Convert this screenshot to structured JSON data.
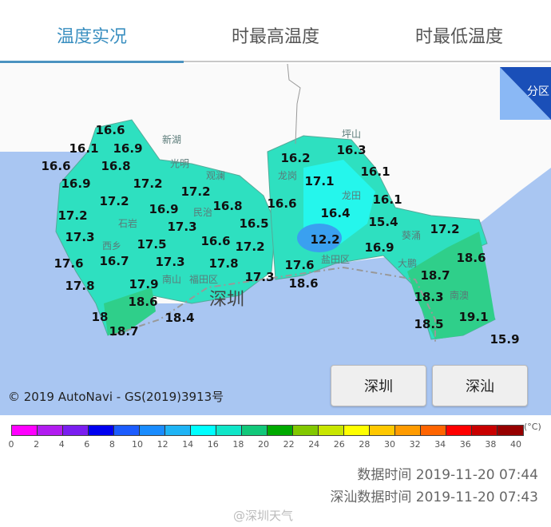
{
  "tabs": [
    {
      "label": "温度实况",
      "active": true
    },
    {
      "label": "时最高温度"
    },
    {
      "label": "时最低温度"
    }
  ],
  "map": {
    "corner_button": "分区",
    "city_label": "深圳",
    "copyright": "© 2019 AutoNavi - GS(2019)3913号",
    "buttons": [
      "深圳",
      "深汕"
    ],
    "temperatures": [
      "16.6",
      "16.1",
      "16.9",
      "16.6",
      "16.8",
      "16.9",
      "17.2",
      "17.2",
      "17.2",
      "17.2",
      "16.9",
      "16.8",
      "17.3",
      "16.5",
      "17.3",
      "17.5",
      "16.6",
      "17.2",
      "16.7",
      "17.3",
      "17.8",
      "17.3",
      "17.6",
      "17.8",
      "17.9",
      "18.6",
      "18",
      "18.7",
      "18.4",
      "16.2",
      "16.3",
      "17.1",
      "16.1",
      "16.6",
      "16.1",
      "16.4",
      "15.4",
      "12.2",
      "16.9",
      "17.2",
      "17.6",
      "18.6",
      "18.6",
      "18.7",
      "18.3",
      "18.5",
      "19.1",
      "15.9"
    ],
    "districts": [
      "新湖",
      "光明",
      "石岩",
      "西乡",
      "南山",
      "福田区",
      "观澜",
      "民治",
      "龙岗",
      "坪山",
      "龙田",
      "盐田区",
      "葵涌",
      "大鹏",
      "南澳"
    ],
    "colors": {
      "sea": "#a9c6f2",
      "land_cool": "#2ee0c0",
      "land_cold": "#22ffff",
      "land_warm": "#2fcf8a",
      "cold_spot": "#3aa0f0"
    }
  },
  "legend": {
    "unit": "(°C)",
    "ticks": [
      "0",
      "2",
      "4",
      "6",
      "8",
      "10",
      "12",
      "14",
      "16",
      "18",
      "20",
      "22",
      "24",
      "26",
      "28",
      "30",
      "32",
      "34",
      "36",
      "38",
      "40"
    ],
    "colors": [
      "#ff00ff",
      "#b21cf0",
      "#7a1ef0",
      "#0000f0",
      "#1c5cff",
      "#1a8cff",
      "#1fb4f5",
      "#00ffff",
      "#10e6c8",
      "#12c87a",
      "#00aa00",
      "#82c800",
      "#c8e600",
      "#ffff00",
      "#ffc800",
      "#ff9b00",
      "#ff6400",
      "#ff0000",
      "#c80000",
      "#960000"
    ]
  },
  "footer": {
    "data_time": "数据时间 2019-11-20 07:44",
    "shanwei_time": "深汕数据时间 2019-11-20 07:43",
    "watermark": "@深圳天气"
  }
}
